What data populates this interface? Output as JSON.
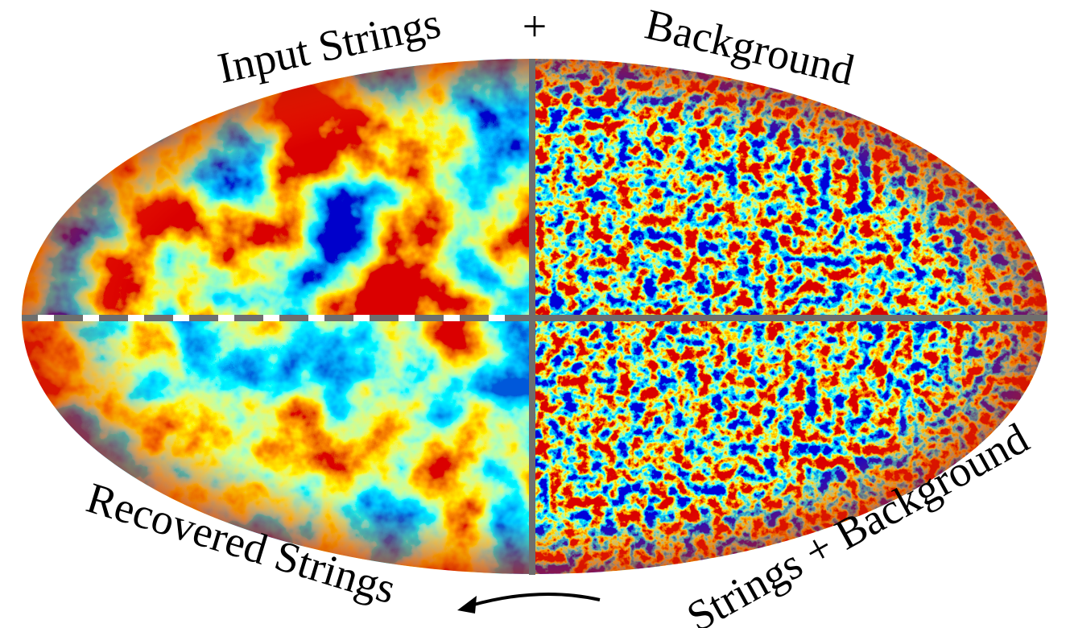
{
  "labels": {
    "top_left": "Input Strings",
    "plus": "+",
    "top_right": "Background",
    "bottom_left": "Recovered Strings",
    "bottom_right": "Strings + Background"
  }
}
